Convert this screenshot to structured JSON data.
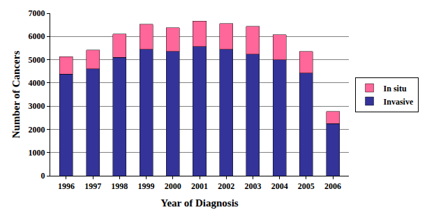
{
  "chart_data": {
    "type": "bar",
    "stacked": true,
    "x_label": "Year of Diagnosis",
    "y_label": "Number of Cancers",
    "categories": [
      "1996",
      "1997",
      "1998",
      "1999",
      "2000",
      "2001",
      "2002",
      "2003",
      "2004",
      "2005",
      "2006"
    ],
    "series": [
      {
        "name": "Invasive",
        "color": "#333399",
        "values": [
          4380,
          4600,
          5100,
          5450,
          5350,
          5570,
          5450,
          5230,
          5000,
          4430,
          2250
        ]
      },
      {
        "name": "In situ",
        "color": "#ff6699",
        "values": [
          750,
          820,
          1010,
          1070,
          1030,
          1090,
          1100,
          1200,
          1080,
          930,
          520
        ]
      }
    ],
    "ylim": [
      0,
      7000
    ],
    "yticks": [
      0,
      1000,
      2000,
      3000,
      4000,
      5000,
      6000,
      7000
    ],
    "grid": true,
    "legend": "right"
  }
}
